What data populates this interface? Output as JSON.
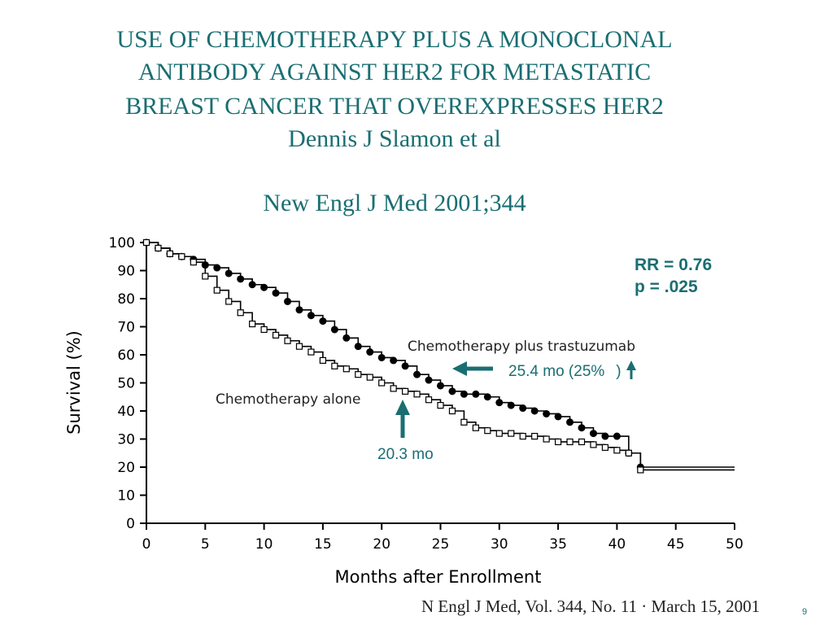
{
  "slide": {
    "title_lines": [
      "USE OF CHEMOTHERAPY PLUS A  MONOCLONAL",
      "ANTIBODY AGAINST HER2 FOR METASTATIC",
      "BREAST CANCER THAT OVEREXPRESSES HER2"
    ],
    "author": "Dennis J Slamon et al",
    "journal": "New Engl J Med 2001;344",
    "stats": {
      "rr": "RR = 0.76",
      "p": "p = .025"
    },
    "annotation_combo": "25.4 mo (25%",
    "annotation_combo_close": ")",
    "annotation_alone": "20.3 mo",
    "citation": "N Engl J Med, Vol. 344, No. 11  ·  March 15, 2001",
    "page_number": "9",
    "accent_color": "#1a6e72"
  },
  "chart_data": {
    "type": "line",
    "title": "",
    "xlabel": "Months after Enrollment",
    "ylabel": "Survival (%)",
    "xlim": [
      0,
      50
    ],
    "ylim": [
      0,
      100
    ],
    "xticks": [
      0,
      5,
      10,
      15,
      20,
      25,
      30,
      35,
      40,
      45,
      50
    ],
    "yticks": [
      0,
      10,
      20,
      30,
      40,
      50,
      60,
      70,
      80,
      90,
      100
    ],
    "grid": false,
    "series": [
      {
        "name": "Chemotherapy plus trastuzumab",
        "marker": "filled-circle",
        "x": [
          0,
          1,
          2,
          3,
          4,
          5,
          6,
          7,
          8,
          9,
          10,
          11,
          12,
          13,
          14,
          15,
          16,
          17,
          18,
          19,
          20,
          21,
          22,
          23,
          24,
          25,
          26,
          27,
          28,
          29,
          30,
          31,
          32,
          33,
          34,
          35,
          36,
          37,
          38,
          39,
          40,
          41,
          42,
          50
        ],
        "y": [
          100,
          98,
          96,
          95,
          94,
          92,
          91,
          89,
          87,
          85,
          84,
          82,
          79,
          76,
          74,
          72,
          69,
          66,
          63,
          61,
          59,
          58,
          56,
          53,
          51,
          49,
          47,
          46,
          46,
          45,
          43,
          42,
          41,
          40,
          39,
          38,
          36,
          34,
          32,
          31,
          31,
          25,
          20,
          20
        ]
      },
      {
        "name": "Chemotherapy alone",
        "marker": "open-square",
        "x": [
          0,
          1,
          2,
          3,
          4,
          5,
          6,
          7,
          8,
          9,
          10,
          11,
          12,
          13,
          14,
          15,
          16,
          17,
          18,
          19,
          20,
          21,
          22,
          23,
          24,
          25,
          26,
          27,
          28,
          29,
          30,
          31,
          32,
          33,
          34,
          35,
          36,
          37,
          38,
          39,
          40,
          41,
          42,
          50
        ],
        "y": [
          100,
          98,
          96,
          95,
          93,
          88,
          83,
          79,
          75,
          71,
          69,
          67,
          65,
          63,
          61,
          58,
          56,
          55,
          53,
          52,
          50,
          48,
          47,
          46,
          44,
          42,
          40,
          36,
          34,
          33,
          32,
          32,
          31,
          31,
          30,
          29,
          29,
          29,
          28,
          27,
          26,
          25,
          19,
          19
        ]
      }
    ]
  }
}
